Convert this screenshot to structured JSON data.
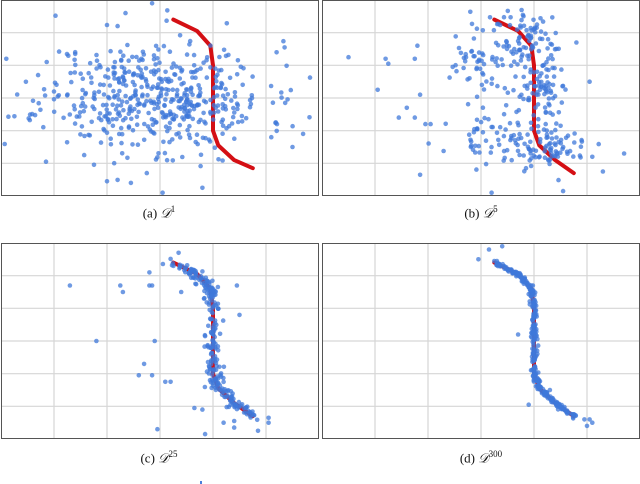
{
  "figure": {
    "panels": [
      {
        "id": "a",
        "label": "(a)",
        "symbol": "D",
        "superscript": "1"
      },
      {
        "id": "b",
        "label": "(b)",
        "symbol": "D",
        "superscript": "5"
      },
      {
        "id": "c",
        "label": "(c)",
        "symbol": "D",
        "superscript": "25"
      },
      {
        "id": "d",
        "label": "(d)",
        "symbol": "D",
        "superscript": "300"
      }
    ],
    "colors": {
      "points": "#3f78d9",
      "curve": "#d40f14",
      "grid": "#d6d6d6",
      "frame": "#555555"
    }
  },
  "chart_data": [
    {
      "type": "scatter",
      "title": "(a) D^1",
      "xlabel": "",
      "ylabel": "",
      "grid": true,
      "xlim": [
        0,
        6
      ],
      "ylim": [
        0,
        6
      ],
      "x_gridlines": [
        1,
        2,
        3,
        4,
        5
      ],
      "y_gridlines": [
        1,
        2,
        3,
        4,
        5
      ],
      "series": [
        {
          "name": "target curve",
          "kind": "line",
          "points": [
            [
              3.25,
              5.4
            ],
            [
              3.7,
              5.05
            ],
            [
              3.95,
              4.6
            ],
            [
              4.0,
              4.0
            ],
            [
              4.0,
              3.0
            ],
            [
              4.0,
              2.0
            ],
            [
              4.1,
              1.55
            ],
            [
              4.4,
              1.1
            ],
            [
              4.75,
              0.85
            ]
          ]
        },
        {
          "name": "samples",
          "kind": "scatter",
          "description": "broad gaussian cloud centered near (2.9,3.0), sd ~1.0",
          "cloud": {
            "cx": 2.9,
            "cy": 3.05,
            "sx": 1.05,
            "sy": 0.85,
            "n": 520,
            "seed": 11
          },
          "points": [
            [
              0.1,
              4.2
            ],
            [
              0.85,
              1.05
            ],
            [
              2.85,
              5.9
            ],
            [
              2.35,
              5.6
            ],
            [
              2.2,
              5.2
            ],
            [
              5.2,
              4.4
            ],
            [
              5.7,
              1.9
            ],
            [
              5.5,
              1.5
            ],
            [
              5.1,
              1.8
            ],
            [
              3.05,
              0.1
            ],
            [
              3.8,
              0.25
            ],
            [
              2.0,
              0.45
            ],
            [
              2.45,
              0.4
            ],
            [
              2.75,
              0.7
            ],
            [
              1.0,
              3.2
            ],
            [
              0.7,
              3.7
            ]
          ]
        }
      ]
    },
    {
      "type": "scatter",
      "title": "(b) D^5",
      "grid": true,
      "xlim": [
        0,
        6
      ],
      "ylim": [
        0,
        6
      ],
      "series": [
        {
          "name": "target curve",
          "kind": "line",
          "points": [
            [
              3.25,
              5.4
            ],
            [
              3.7,
              5.05
            ],
            [
              3.95,
              4.6
            ],
            [
              4.0,
              4.0
            ],
            [
              4.0,
              3.0
            ],
            [
              4.0,
              2.0
            ],
            [
              4.1,
              1.55
            ],
            [
              4.4,
              1.1
            ],
            [
              4.75,
              0.7
            ]
          ]
        },
        {
          "name": "samples",
          "kind": "scatter",
          "description": "points concentrating along curve with spread",
          "clusters": [
            {
              "cx": 3.9,
              "cy": 4.6,
              "sx": 0.35,
              "sy": 0.5,
              "n": 90,
              "seed": 21
            },
            {
              "cx": 4.1,
              "cy": 3.3,
              "sx": 0.2,
              "sy": 0.4,
              "n": 70,
              "seed": 22
            },
            {
              "cx": 3.5,
              "cy": 1.7,
              "sx": 0.55,
              "sy": 0.35,
              "n": 90,
              "seed": 23
            },
            {
              "cx": 4.3,
              "cy": 1.3,
              "sx": 0.3,
              "sy": 0.35,
              "n": 50,
              "seed": 24
            },
            {
              "cx": 3.1,
              "cy": 4.0,
              "sx": 0.35,
              "sy": 0.6,
              "n": 60,
              "seed": 25
            }
          ],
          "points": [
            [
              0.5,
              4.25
            ],
            [
              1.2,
              4.2
            ],
            [
              1.25,
              4.05
            ],
            [
              1.75,
              4.2
            ],
            [
              1.8,
              4.6
            ],
            [
              1.05,
              3.25
            ],
            [
              1.85,
              3.1
            ],
            [
              1.6,
              2.7
            ],
            [
              1.45,
              2.4
            ],
            [
              1.75,
              2.4
            ],
            [
              1.95,
              2.2
            ],
            [
              2.05,
              2.2
            ],
            [
              1.85,
              0.65
            ],
            [
              3.2,
              0.1
            ],
            [
              3.6,
              0.05
            ],
            [
              4.55,
              0.15
            ],
            [
              5.1,
              1.2
            ],
            [
              5.7,
              1.3
            ],
            [
              5.3,
              0.75
            ],
            [
              4.8,
              4.7
            ],
            [
              5.05,
              3.5
            ]
          ]
        }
      ]
    },
    {
      "type": "scatter",
      "title": "(c) D^25",
      "grid": true,
      "xlim": [
        0,
        6
      ],
      "ylim": [
        0,
        6
      ],
      "series": [
        {
          "name": "target curve",
          "kind": "line",
          "points": [
            [
              3.25,
              5.4
            ],
            [
              3.7,
              5.05
            ],
            [
              3.95,
              4.6
            ],
            [
              4.0,
              4.0
            ],
            [
              4.0,
              3.0
            ],
            [
              4.0,
              2.0
            ],
            [
              4.1,
              1.55
            ],
            [
              4.4,
              1.1
            ],
            [
              4.75,
              0.7
            ]
          ]
        },
        {
          "name": "samples",
          "kind": "scatter",
          "description": "points mostly on curve, few outliers",
          "on_curve": {
            "n": 260,
            "jitter": 0.07,
            "seed": 31
          },
          "points": [
            [
              1.3,
              4.7
            ],
            [
              1.8,
              3.0
            ],
            [
              2.25,
              4.7
            ],
            [
              2.3,
              4.5
            ],
            [
              2.8,
              5.1
            ],
            [
              2.8,
              4.7
            ],
            [
              2.85,
              4.7
            ],
            [
              2.9,
              3.0
            ],
            [
              2.7,
              2.3
            ],
            [
              2.6,
              1.95
            ],
            [
              2.85,
              1.95
            ],
            [
              3.1,
              1.75
            ],
            [
              3.2,
              1.75
            ],
            [
              3.4,
              4.5
            ],
            [
              3.35,
              5.7
            ],
            [
              3.3,
              5.95
            ],
            [
              2.95,
              0.3
            ],
            [
              3.85,
              0.15
            ],
            [
              4.2,
              0.05
            ],
            [
              4.2,
              0.5
            ],
            [
              4.4,
              0.55
            ],
            [
              4.4,
              0.35
            ],
            [
              4.85,
              0.25
            ],
            [
              5.05,
              0.65
            ],
            [
              5.05,
              0.5
            ],
            [
              4.45,
              4.7
            ],
            [
              4.5,
              3.8
            ],
            [
              3.85,
              3.15
            ],
            [
              3.65,
              0.95
            ],
            [
              3.8,
              0.9
            ]
          ]
        }
      ]
    },
    {
      "type": "scatter",
      "title": "(d) D^300",
      "grid": true,
      "xlim": [
        0,
        6
      ],
      "ylim": [
        0,
        6
      ],
      "series": [
        {
          "name": "target curve",
          "kind": "line",
          "points": [
            [
              3.25,
              5.4
            ],
            [
              3.7,
              5.05
            ],
            [
              3.95,
              4.6
            ],
            [
              4.0,
              4.0
            ],
            [
              4.0,
              3.0
            ],
            [
              4.0,
              2.0
            ],
            [
              4.1,
              1.55
            ],
            [
              4.4,
              1.1
            ],
            [
              4.75,
              0.7
            ]
          ]
        },
        {
          "name": "samples",
          "kind": "scatter",
          "description": "points nearly exactly on curve",
          "on_curve": {
            "n": 320,
            "jitter": 0.03,
            "seed": 41
          },
          "points": [
            [
              2.95,
              5.5
            ],
            [
              3.15,
              5.8
            ],
            [
              3.4,
              5.9
            ],
            [
              3.25,
              5.45
            ],
            [
              3.3,
              5.45
            ],
            [
              3.7,
              3.2
            ],
            [
              3.9,
              1.05
            ],
            [
              4.3,
              1.5
            ],
            [
              4.95,
              0.6
            ],
            [
              5.05,
              0.6
            ],
            [
              5.1,
              0.5
            ],
            [
              5.0,
              0.4
            ],
            [
              3.95,
              4.7
            ],
            [
              3.98,
              4.7
            ]
          ]
        }
      ]
    }
  ]
}
